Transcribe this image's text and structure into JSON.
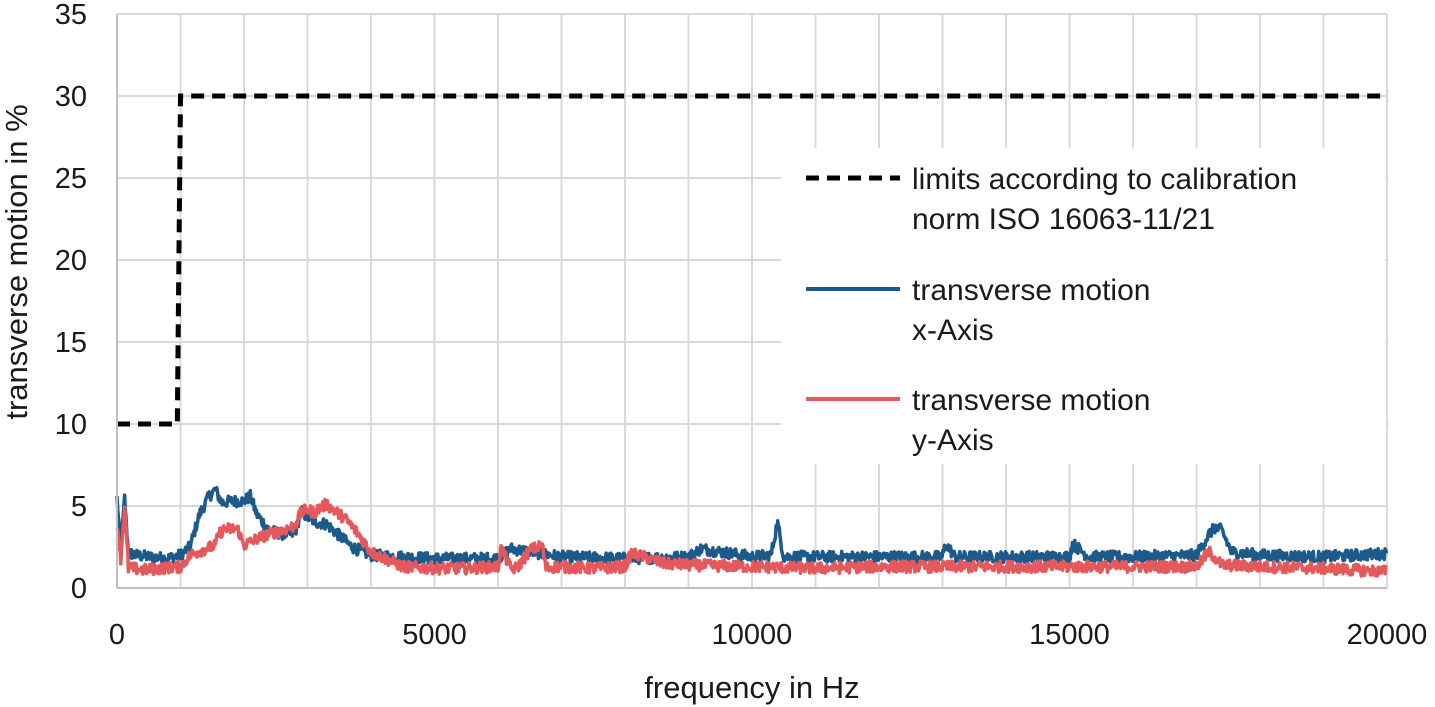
{
  "chart_data": {
    "type": "line",
    "title": "",
    "xlabel": "frequency in Hz",
    "ylabel": "transverse motion in %",
    "xlim": [
      0,
      20000
    ],
    "ylim": [
      0,
      35
    ],
    "x_ticks": [
      0,
      5000,
      10000,
      15000,
      20000
    ],
    "y_ticks": [
      0,
      5,
      10,
      15,
      20,
      25,
      30,
      35
    ],
    "x_minor_step": 1000,
    "grid": true,
    "legend_position": "right",
    "series": [
      {
        "name": "limits according to calibration norm ISO 16063-11/21",
        "legend_lines": [
          "limits according to calibration",
          "norm ISO 16063-11/21"
        ],
        "color": "#000000",
        "style": "dashed",
        "x": [
          0,
          950,
          950,
          1000,
          1000,
          20000
        ],
        "y": [
          10,
          10,
          10,
          30,
          30,
          30
        ]
      },
      {
        "name": "transverse motion x-Axis",
        "legend_lines": [
          "transverse motion",
          "x-Axis"
        ],
        "color": "#1b5a8a",
        "style": "solid",
        "base": 1.8,
        "noise": 0.35,
        "x": [
          0,
          60,
          120,
          180,
          230,
          300,
          500,
          800,
          1000,
          1150,
          1300,
          1450,
          1550,
          1650,
          1800,
          2000,
          2100,
          2200,
          2400,
          2600,
          2800,
          2900,
          3000,
          3150,
          3300,
          3500,
          3700,
          4000,
          4500,
          5000,
          6000,
          6200,
          7000,
          8000,
          9000,
          9200,
          10000,
          10300,
          10400,
          10500,
          11000,
          12000,
          13000,
          13050,
          13200,
          14000,
          15000,
          15050,
          15300,
          16000,
          17000,
          17200,
          17300,
          17400,
          17550,
          18000,
          19000,
          20000
        ],
        "y": [
          5.5,
          2.2,
          5.5,
          2.0,
          2.1,
          2.0,
          1.9,
          1.8,
          2.0,
          2.5,
          4.5,
          5.6,
          6.0,
          5.2,
          5.3,
          5.3,
          5.6,
          4.5,
          3.5,
          3.3,
          3.3,
          4.7,
          4.3,
          4.0,
          3.9,
          3.2,
          2.5,
          2.0,
          1.9,
          1.8,
          1.8,
          2.4,
          1.9,
          1.8,
          1.9,
          2.4,
          1.9,
          2.0,
          4.0,
          1.9,
          1.9,
          1.9,
          1.9,
          2.7,
          1.9,
          1.9,
          1.9,
          2.7,
          1.9,
          1.9,
          2.0,
          3.3,
          3.7,
          3.5,
          2.2,
          2.0,
          1.9,
          2.1
        ]
      },
      {
        "name": "transverse motion y-Axis",
        "legend_lines": [
          "transverse motion",
          "y-Axis"
        ],
        "color": "#e3595c",
        "style": "solid",
        "base": 1.2,
        "noise": 0.35,
        "x": [
          0,
          60,
          120,
          180,
          250,
          400,
          700,
          1000,
          1150,
          1400,
          1550,
          1600,
          1700,
          1900,
          2000,
          2200,
          2400,
          2600,
          2800,
          2900,
          3000,
          3100,
          3200,
          3300,
          3400,
          3600,
          3800,
          4000,
          4500,
          5000,
          5500,
          6000,
          6050,
          6200,
          6300,
          6500,
          6700,
          6750,
          6900,
          7500,
          8000,
          8100,
          8300,
          8600,
          9000,
          10000,
          11000,
          12000,
          13000,
          14000,
          15000,
          15500,
          16000,
          17000,
          17200,
          17400,
          18000,
          19000,
          20000
        ],
        "y": [
          4.0,
          1.8,
          5.0,
          1.2,
          1.2,
          1.1,
          1.2,
          1.3,
          2.0,
          2.4,
          2.6,
          3.3,
          3.6,
          3.6,
          2.6,
          3.0,
          3.3,
          3.5,
          3.8,
          4.6,
          4.8,
          4.6,
          4.9,
          5.1,
          4.8,
          4.2,
          3.3,
          2.2,
          1.3,
          1.2,
          1.2,
          1.3,
          2.4,
          1.2,
          1.2,
          2.3,
          2.6,
          1.2,
          1.3,
          1.2,
          1.3,
          2.1,
          1.9,
          1.5,
          1.4,
          1.3,
          1.2,
          1.3,
          1.3,
          1.3,
          1.3,
          1.3,
          1.3,
          1.3,
          2.2,
          1.4,
          1.3,
          1.2,
          1.0
        ]
      }
    ]
  }
}
